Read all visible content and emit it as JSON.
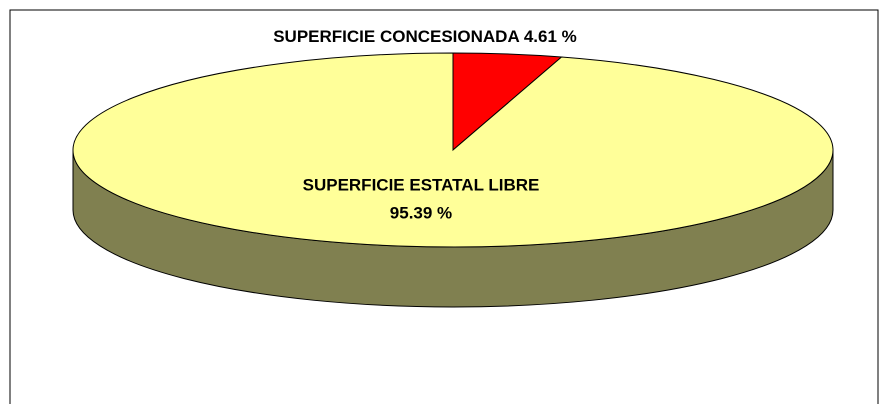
{
  "chart_data": {
    "type": "pie3d",
    "categories": [
      "SUPERFICIE CONCESIONADA",
      "SUPERFICIE ESTATAL LIBRE"
    ],
    "values": [
      4.61,
      95.39
    ],
    "value_labels": [
      "4.61 %",
      "95.39 %"
    ],
    "colors": [
      "#ff0000",
      "#ffff99"
    ],
    "side_colors": [
      "#800000",
      "#808050"
    ]
  }
}
